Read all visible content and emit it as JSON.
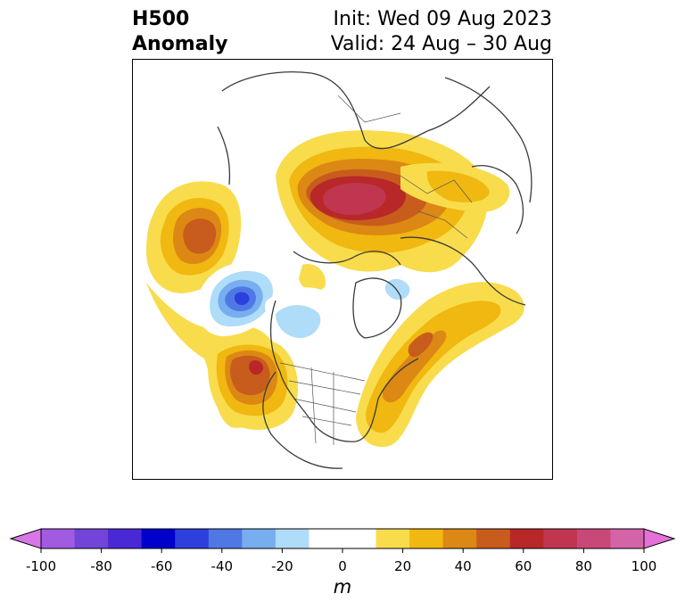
{
  "title": {
    "left_line1": "H500",
    "left_line2": "Anomaly",
    "right_line1": "Init: Wed 09 Aug 2023",
    "right_line2": "Valid: 24 Aug – 30 Aug"
  },
  "colorbar": {
    "unit": "m",
    "ticks": [
      "-100",
      "-80",
      "-60",
      "-40",
      "-20",
      "0",
      "20",
      "40",
      "60",
      "80",
      "100"
    ],
    "colors": [
      "#d877e8",
      "#a15be0",
      "#7244d8",
      "#4a28d4",
      "#0000cc",
      "#2d3fdc",
      "#4f78e4",
      "#76aef0",
      "#afdcf8",
      "#ffffff",
      "#ffffff",
      "#f8dc4c",
      "#f0b810",
      "#dc8814",
      "#c85c1c",
      "#b82828",
      "#c03650",
      "#c84878",
      "#d464a8",
      "#e470d8"
    ]
  },
  "features": [
    {
      "name": "Ridge over Siberia / Arctic",
      "sign": "positive"
    },
    {
      "name": "Ridge over Alaska / NE Pacific",
      "sign": "positive"
    },
    {
      "name": "Ridge over western U.S.",
      "sign": "positive"
    },
    {
      "name": "Ridge over North Atlantic / eastern North America",
      "sign": "positive"
    },
    {
      "name": "Trough over Gulf of Alaska coast",
      "sign": "negative"
    },
    {
      "name": "Trough over central Canada",
      "sign": "negative"
    }
  ]
}
